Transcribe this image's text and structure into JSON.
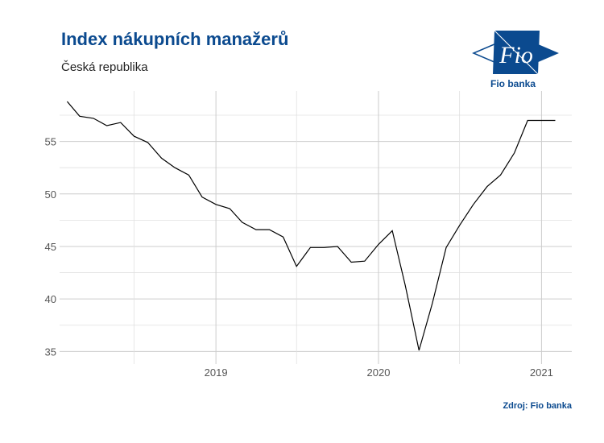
{
  "header": {
    "title": "Index nákupních manažerů",
    "subtitle": "Česká republika"
  },
  "logo": {
    "mark_text": "Fio",
    "caption": "Fio banka",
    "color": "#0b4a8f"
  },
  "footer": {
    "source": "Zdroj: Fio banka"
  },
  "chart_data": {
    "type": "line",
    "title": "Index nákupních manažerů",
    "subtitle": "Česká republika",
    "xlabel": "",
    "ylabel": "",
    "x_ticks": [
      "2019",
      "2020",
      "2021"
    ],
    "y_ticks": [
      35,
      40,
      45,
      50,
      55
    ],
    "ylim": [
      33.8,
      59.8
    ],
    "xlim": [
      "2018-01-15",
      "2021-03-10"
    ],
    "grid": true,
    "line_color": "#000000",
    "series": [
      {
        "x": [
          "2018-02-01",
          "2018-03-01",
          "2018-04-01",
          "2018-05-01",
          "2018-06-01",
          "2018-07-01",
          "2018-08-01",
          "2018-09-01",
          "2018-10-01",
          "2018-11-01",
          "2018-12-01",
          "2019-01-01",
          "2019-02-01",
          "2019-03-01",
          "2019-04-01",
          "2019-05-01",
          "2019-06-01",
          "2019-07-01",
          "2019-08-01",
          "2019-09-01",
          "2019-10-01",
          "2019-11-01",
          "2019-12-01",
          "2020-01-01",
          "2020-02-01",
          "2020-03-01",
          "2020-04-01",
          "2020-05-01",
          "2020-06-01",
          "2020-07-01",
          "2020-08-01",
          "2020-09-01",
          "2020-10-01",
          "2020-11-01",
          "2020-12-01",
          "2021-01-01",
          "2021-02-01"
        ],
        "values": [
          58.8,
          57.4,
          57.2,
          56.5,
          56.8,
          55.5,
          54.9,
          53.4,
          52.5,
          51.8,
          49.7,
          49.0,
          48.6,
          47.3,
          46.6,
          46.6,
          45.9,
          43.1,
          44.9,
          44.9,
          45.0,
          43.5,
          43.6,
          45.2,
          46.5,
          41.3,
          35.1,
          39.6,
          44.9,
          47.0,
          49.0,
          50.7,
          51.8,
          53.9,
          57.0,
          57.0,
          57.0
        ]
      }
    ]
  }
}
